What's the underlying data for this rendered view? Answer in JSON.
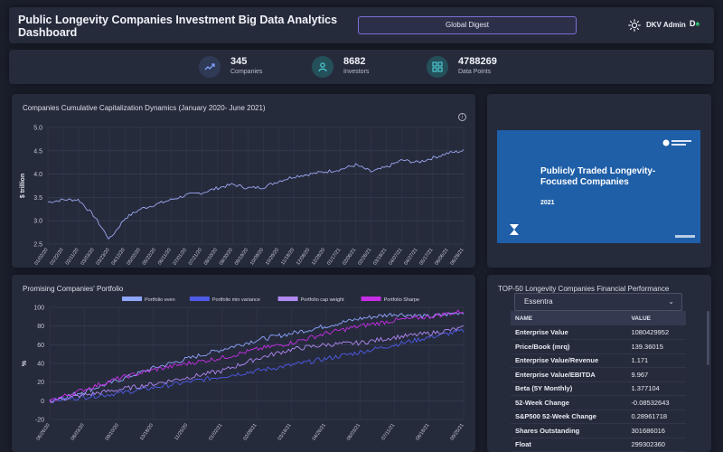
{
  "header": {
    "title": "Public Longevity Companies Investment Big Data Analytics Dashboard",
    "digest_label": "Global Digest",
    "user_name": "DKV Admin",
    "brand_text": "D",
    "theme_icon": "sun-icon"
  },
  "stats": [
    {
      "value": "345",
      "label": "Companies",
      "icon": "trend-icon"
    },
    {
      "value": "8682",
      "label": "Investors",
      "icon": "user-icon"
    },
    {
      "value": "4788269",
      "label": "Data Points",
      "icon": "grid-icon"
    }
  ],
  "capitalization": {
    "title": "Companies Cumulative Capitalization Dynamics (January 2020- June 2021)"
  },
  "presentation": {
    "title": "Publicly Traded Longevity-Focused Companies",
    "year": "2021"
  },
  "portfolio": {
    "title": "Promising Companies' Portfolio"
  },
  "top50": {
    "title": "TOP-50 Longevity Companies Financial Performance",
    "selected_company": "Essentra",
    "columns": [
      "NAME",
      "VALUE"
    ],
    "rows": [
      [
        "Enterprise Value",
        "1080429952"
      ],
      [
        "Price/Book (mrq)",
        "139.36015"
      ],
      [
        "Enterprise Value/Revenue",
        "1.171"
      ],
      [
        "Enterprise Value/EBITDA",
        "9.967"
      ],
      [
        "Beta (5Y Monthly)",
        "1.377104"
      ],
      [
        "52-Week Change",
        "-0.08532643"
      ],
      [
        "S&P500 52-Week Change",
        "0.28961718"
      ],
      [
        "Shares Outstanding",
        "301686016"
      ],
      [
        "Float",
        "299302360"
      ]
    ]
  },
  "colors": {
    "background": "#1b1f2c",
    "panel": "#262b3c",
    "accent": "#7a6fd6",
    "cap_line": "#9aa6ee",
    "slide_blue": "#1f5fa8"
  },
  "chart_data": [
    {
      "type": "line",
      "ylabel": "$ trillion",
      "ylim": [
        2.5,
        5.0
      ],
      "yticks": [
        "5.0",
        "4.5",
        "4.0",
        "3.5",
        "3.0",
        "2.5"
      ],
      "x": [
        "01/02/20",
        "01/22/20",
        "02/11/20",
        "03/03/20",
        "03/23/20",
        "04/12/20",
        "05/02/20",
        "05/22/20",
        "06/11/20",
        "07/01/20",
        "07/21/20",
        "08/10/20",
        "08/30/20",
        "09/19/20",
        "10/09/20",
        "10/29/20",
        "11/18/20",
        "12/08/20",
        "12/28/20",
        "01/17/21",
        "02/06/21",
        "02/26/21",
        "03/18/21",
        "04/07/21",
        "04/27/21",
        "05/17/21",
        "06/06/21",
        "06/28/21"
      ],
      "series": [
        {
          "values": [
            3.4,
            3.45,
            3.45,
            3.1,
            2.6,
            3.05,
            3.25,
            3.35,
            3.45,
            3.55,
            3.6,
            3.7,
            3.78,
            3.7,
            3.72,
            3.85,
            3.95,
            4.0,
            4.05,
            4.1,
            4.2,
            4.05,
            4.15,
            4.3,
            4.25,
            4.35,
            4.45,
            4.5
          ]
        }
      ]
    },
    {
      "type": "line",
      "ylabel": "%",
      "ylim": [
        -20,
        100
      ],
      "yticks": [
        "100",
        "80",
        "60",
        "40",
        "20",
        "0",
        "-20"
      ],
      "x": [
        "06/26/20",
        "08/03/20",
        "09/10/20",
        "10/18/20",
        "11/25/20",
        "01/02/21",
        "02/09/21",
        "03/19/21",
        "04/26/21",
        "06/03/21",
        "07/11/21",
        "08/18/21",
        "09/25/21"
      ],
      "series": [
        {
          "name": "Portfolio even",
          "color": "#8fa6ff",
          "values": [
            0,
            10,
            22,
            35,
            45,
            55,
            65,
            72,
            80,
            88,
            93,
            90,
            95
          ]
        },
        {
          "name": "Portfolio min variance",
          "color": "#4f5be8",
          "values": [
            0,
            4,
            8,
            14,
            20,
            26,
            32,
            38,
            45,
            52,
            60,
            68,
            75
          ]
        },
        {
          "name": "Portfolio cap weight",
          "color": "#b089f2",
          "values": [
            0,
            6,
            12,
            18,
            25,
            32,
            45,
            55,
            60,
            62,
            68,
            72,
            78
          ]
        },
        {
          "name": "Portfolio Sharpe",
          "color": "#c62ee6",
          "values": [
            0,
            12,
            24,
            33,
            40,
            46,
            55,
            62,
            72,
            80,
            86,
            90,
            96
          ]
        }
      ]
    }
  ]
}
